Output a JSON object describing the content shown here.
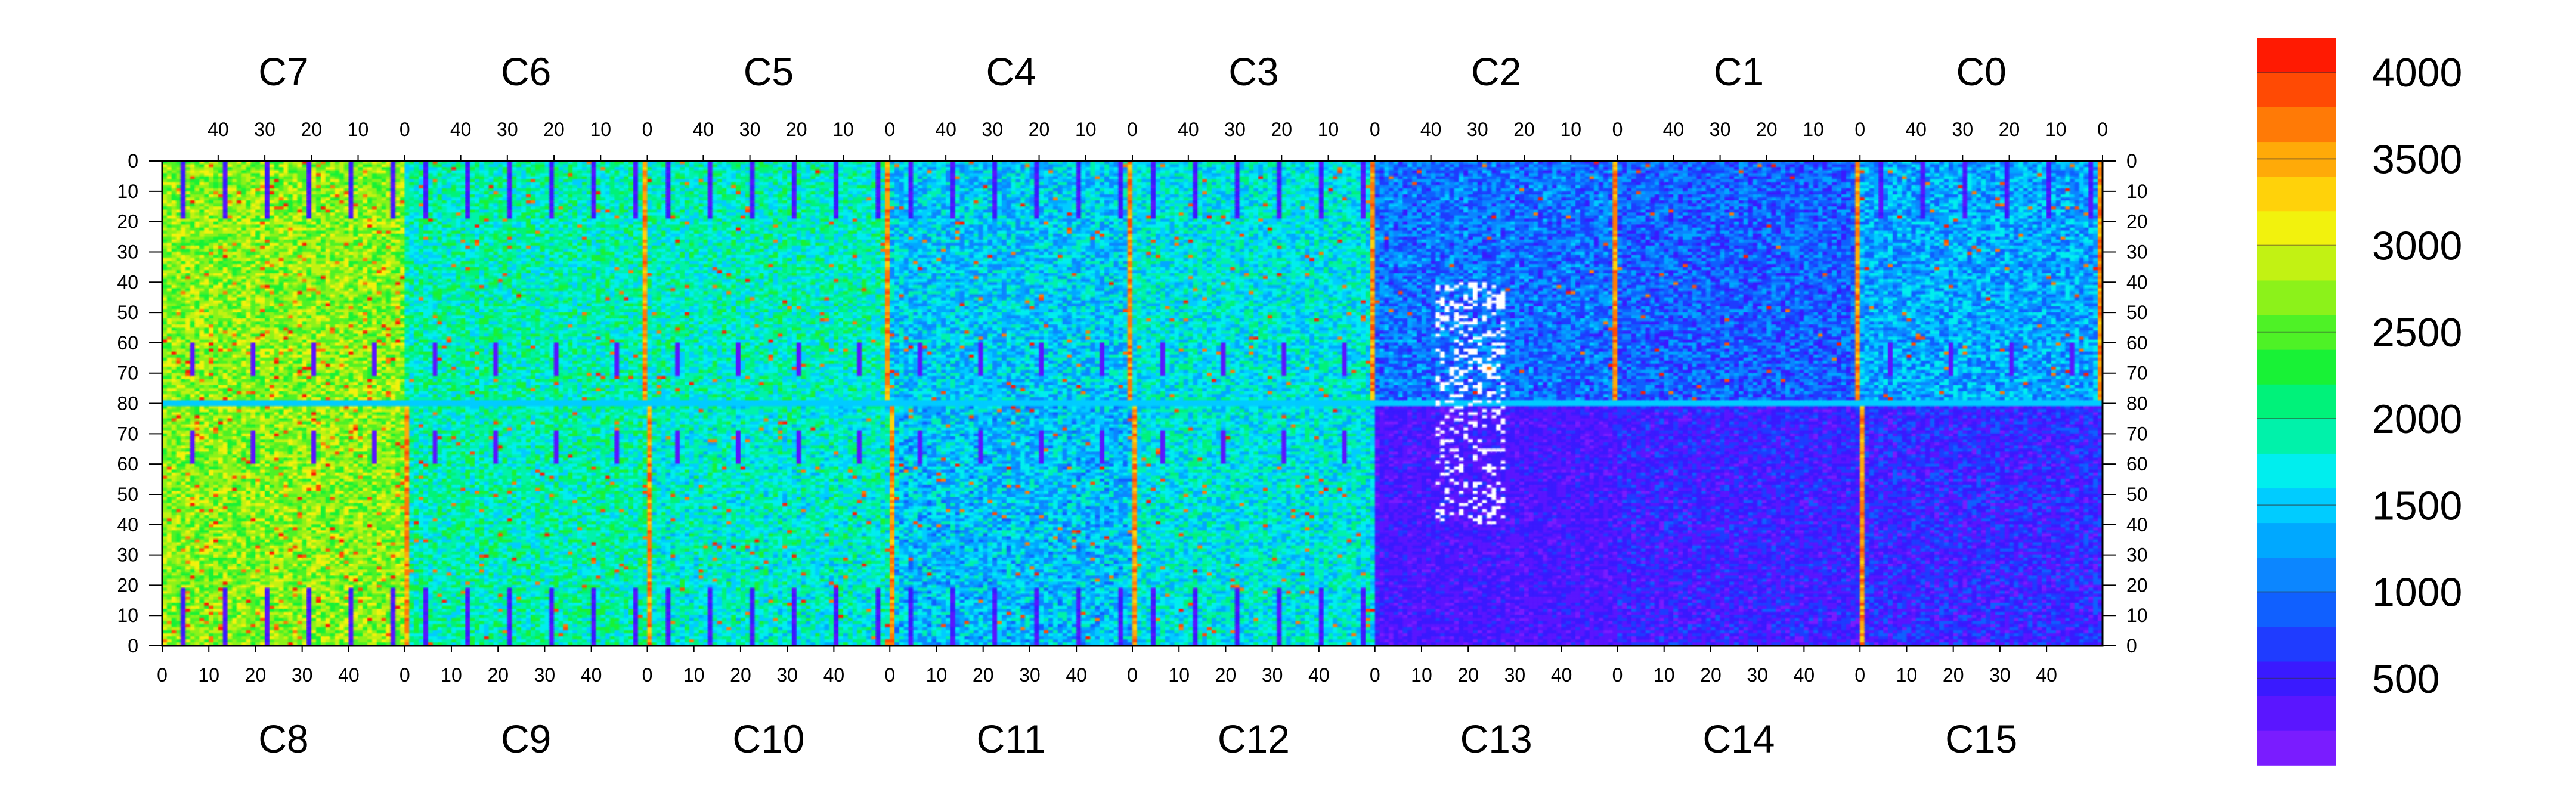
{
  "chart_data": {
    "type": "heatmap",
    "top_chip_labels": [
      "C7",
      "C6",
      "C5",
      "C4",
      "C3",
      "C2",
      "C1",
      "C0"
    ],
    "bottom_chip_labels": [
      "C8",
      "C9",
      "C10",
      "C11",
      "C12",
      "C13",
      "C14",
      "C15"
    ],
    "top_axis_ticks": [
      "40",
      "30",
      "20",
      "10",
      "0"
    ],
    "bottom_axis_ticks": [
      "0",
      "10",
      "20",
      "30",
      "40"
    ],
    "left_axis_ticks": [
      "0",
      "10",
      "20",
      "30",
      "40",
      "50",
      "60",
      "70",
      "80",
      "70",
      "60",
      "50",
      "40",
      "30",
      "20",
      "10",
      "0"
    ],
    "right_axis_ticks": [
      "0",
      "10",
      "20",
      "30",
      "40",
      "50",
      "60",
      "70",
      "80",
      "70",
      "60",
      "50",
      "40",
      "30",
      "20",
      "10",
      "0"
    ],
    "chip_columns": 52,
    "rows_per_half": 80,
    "colorbar": {
      "min": 0,
      "max": 4200,
      "tick_labels": [
        "4000",
        "3500",
        "3000",
        "2500",
        "2000",
        "1500",
        "1000",
        "500"
      ],
      "tick_values": [
        4000,
        3500,
        3000,
        2500,
        2000,
        1500,
        1000,
        500
      ],
      "colors": [
        "#7a1cff",
        "#5a16ff",
        "#3a1aff",
        "#1f3cff",
        "#1060ff",
        "#0c86ff",
        "#00a8ff",
        "#00ccff",
        "#00eeee",
        "#00f2aa",
        "#00f27a",
        "#18f236",
        "#4ef226",
        "#8cf21a",
        "#c2f213",
        "#f2f20d",
        "#ffd20a",
        "#ffaa08",
        "#ff7a06",
        "#ff4a04",
        "#ff1a02"
      ]
    },
    "chips": {
      "C7": {
        "base": 2700,
        "noise": 900,
        "spike": 0.04
      },
      "C6": {
        "base": 1900,
        "noise": 900,
        "spike": 0.02
      },
      "C5": {
        "base": 1850,
        "noise": 900,
        "spike": 0.02
      },
      "C4": {
        "base": 1500,
        "noise": 1000,
        "spike": 0.02
      },
      "C3": {
        "base": 1700,
        "noise": 900,
        "spike": 0.02
      },
      "C2": {
        "base": 1000,
        "noise": 900,
        "spike": 0.01
      },
      "C1": {
        "base": 900,
        "noise": 900,
        "spike": 0.01
      },
      "C0": {
        "base": 1300,
        "noise": 1000,
        "spike": 0.02
      },
      "C8": {
        "base": 2700,
        "noise": 900,
        "spike": 0.04
      },
      "C9": {
        "base": 1900,
        "noise": 900,
        "spike": 0.02
      },
      "C10": {
        "base": 1800,
        "noise": 900,
        "spike": 0.02
      },
      "C11": {
        "base": 1450,
        "noise": 1000,
        "spike": 0.02
      },
      "C12": {
        "base": 1700,
        "noise": 900,
        "spike": 0.02
      },
      "C13": {
        "base": 400,
        "noise": 500,
        "spike": 0.0
      },
      "C14": {
        "base": 500,
        "noise": 700,
        "spike": 0.0
      },
      "C15": {
        "base": 550,
        "noise": 800,
        "spike": 0.0
      }
    },
    "hot_column_value": 3900,
    "center_row_value": 1500
  }
}
